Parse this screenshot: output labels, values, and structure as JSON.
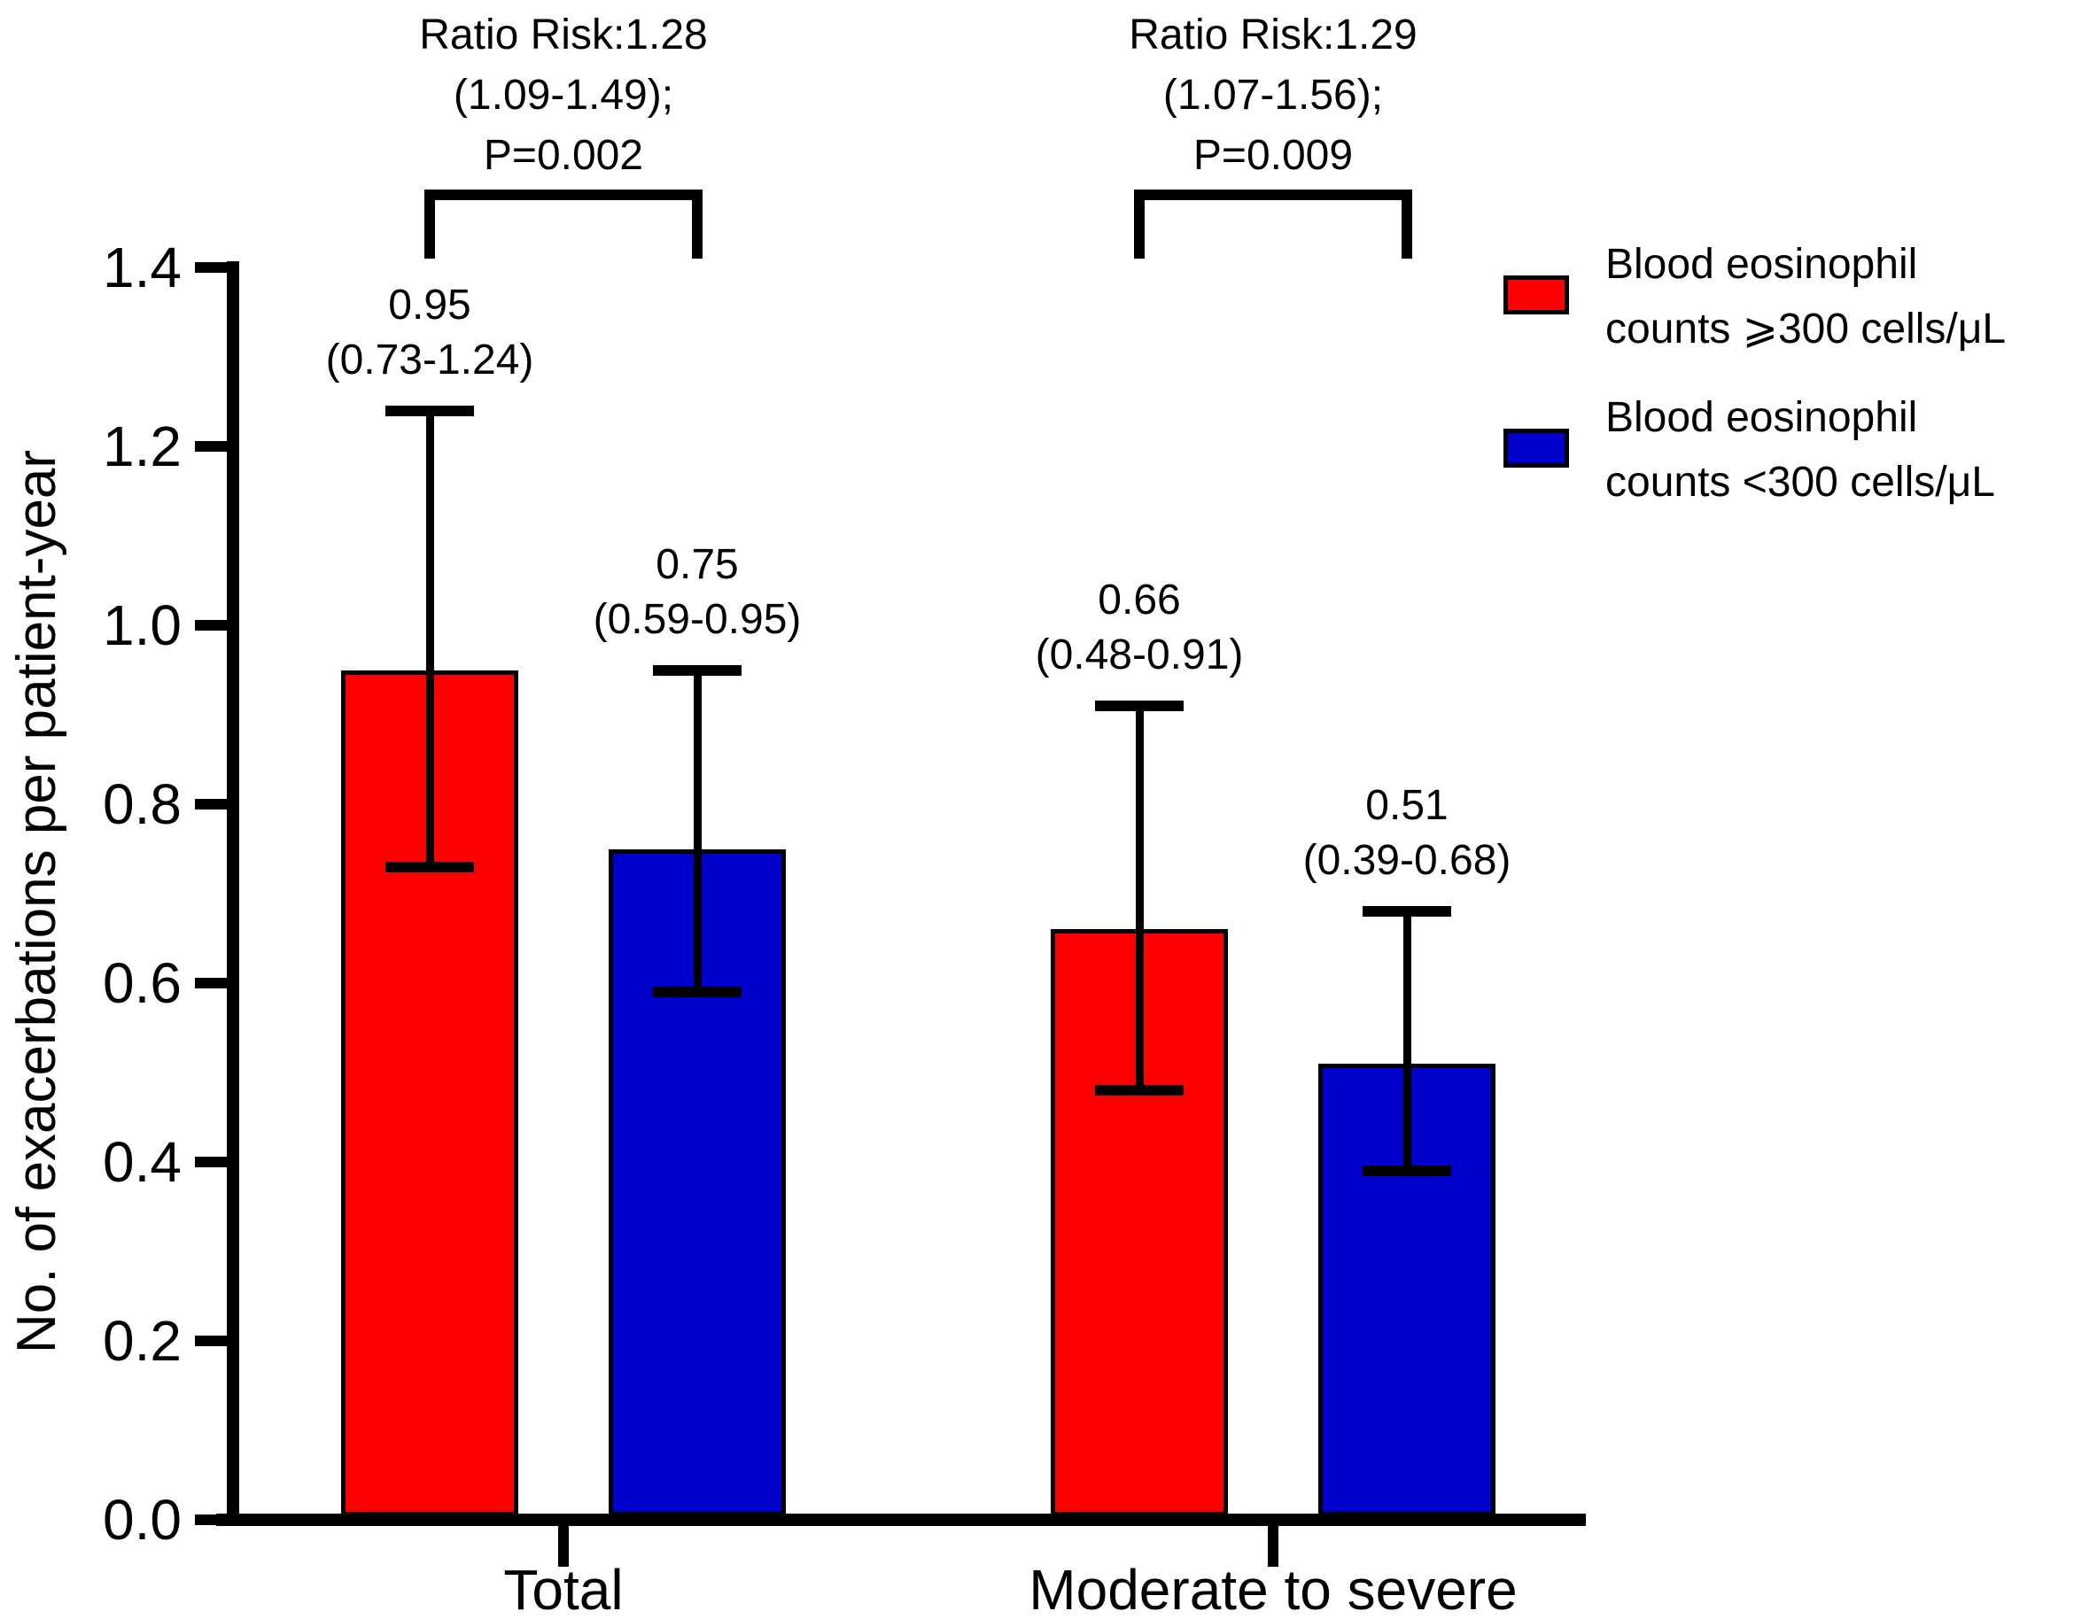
{
  "figure": {
    "background": "#ffffff",
    "line_color": "#000000"
  },
  "chart_data": {
    "type": "bar",
    "title": "",
    "xlabel": "",
    "ylabel": "No. of exacerbations per patient-year",
    "ylim": [
      0,
      1.4
    ],
    "yticks": [
      0,
      0.2,
      0.4,
      0.6,
      0.8,
      1.0,
      1.2,
      1.4
    ],
    "grid": false,
    "error_bars": true,
    "legend_position": "top-right",
    "categories": [
      "Total",
      "Moderate to severe"
    ],
    "series": [
      {
        "name": "Blood eosinophil counts ⩾300 cells/μL",
        "color": "#fe0000",
        "values": [
          0.95,
          0.66
        ],
        "ci_low": [
          0.73,
          0.48
        ],
        "ci_high": [
          1.24,
          0.91
        ],
        "bar_labels": [
          [
            "0.95",
            "(0.73-1.24)"
          ],
          [
            "0.66",
            "(0.48-0.91)"
          ]
        ]
      },
      {
        "name": "Blood eosinophil counts <300 cells/μL",
        "color": "#0000cd",
        "values": [
          0.75,
          0.51
        ],
        "ci_low": [
          0.59,
          0.39
        ],
        "ci_high": [
          0.95,
          0.68
        ],
        "bar_labels": [
          [
            "0.75",
            "(0.59-0.95)"
          ],
          [
            "0.51",
            "(0.39-0.68)"
          ]
        ]
      }
    ],
    "comparisons": [
      {
        "category": "Total",
        "lines": [
          "Ratio Risk:1.28",
          "(1.09-1.49);",
          "P=0.002"
        ]
      },
      {
        "category": "Moderate to severe",
        "lines": [
          "Ratio Risk:1.29",
          "(1.07-1.56);",
          "P=0.009"
        ]
      }
    ],
    "legend": [
      {
        "swatch_color": "#fe0000",
        "lines": [
          "Blood eosinophil",
          "counts ⩾300 cells/μL"
        ]
      },
      {
        "swatch_color": "#0000cd",
        "lines": [
          "Blood eosinophil",
          "counts <300 cells/μL"
        ]
      }
    ]
  }
}
